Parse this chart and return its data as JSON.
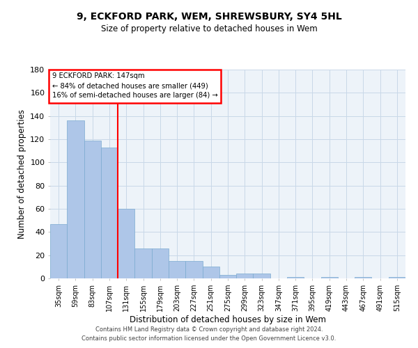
{
  "title1": "9, ECKFORD PARK, WEM, SHREWSBURY, SY4 5HL",
  "title2": "Size of property relative to detached houses in Wem",
  "xlabel": "Distribution of detached houses by size in Wem",
  "ylabel": "Number of detached properties",
  "categories": [
    "35sqm",
    "59sqm",
    "83sqm",
    "107sqm",
    "131sqm",
    "155sqm",
    "179sqm",
    "203sqm",
    "227sqm",
    "251sqm",
    "275sqm",
    "299sqm",
    "323sqm",
    "347sqm",
    "371sqm",
    "395sqm",
    "419sqm",
    "443sqm",
    "467sqm",
    "491sqm",
    "515sqm"
  ],
  "values": [
    47,
    136,
    119,
    113,
    60,
    26,
    26,
    15,
    15,
    10,
    3,
    4,
    4,
    0,
    1,
    0,
    1,
    0,
    1,
    0,
    1
  ],
  "bar_color": "#aec6e8",
  "bar_edge_color": "#7aaad0",
  "grid_color": "#c8d8e8",
  "annotation_text_line1": "9 ECKFORD PARK: 147sqm",
  "annotation_text_line2": "← 84% of detached houses are smaller (449)",
  "annotation_text_line3": "16% of semi-detached houses are larger (84) →",
  "vline_x_index": 4,
  "ylim": [
    0,
    180
  ],
  "yticks": [
    0,
    20,
    40,
    60,
    80,
    100,
    120,
    140,
    160,
    180
  ],
  "footer1": "Contains HM Land Registry data © Crown copyright and database right 2024.",
  "footer2": "Contains public sector information licensed under the Open Government Licence v3.0.",
  "background_color": "#edf3f9",
  "fig_background": "#ffffff"
}
